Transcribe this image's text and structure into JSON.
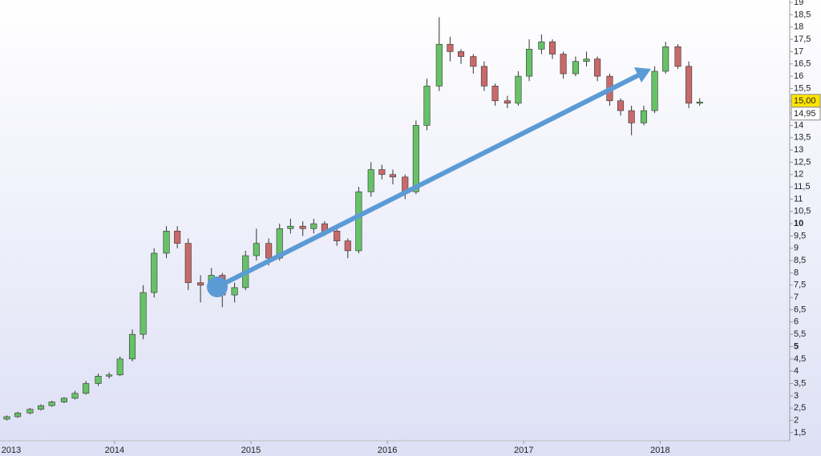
{
  "chart_data": {
    "type": "candlestick",
    "x": [
      2013.21,
      2013.29,
      2013.38,
      2013.46,
      2013.54,
      2013.63,
      2013.71,
      2013.79,
      2013.88,
      2013.96,
      2014.04,
      2014.13,
      2014.21,
      2014.29,
      2014.38,
      2014.46,
      2014.54,
      2014.63,
      2014.71,
      2014.79,
      2014.88,
      2014.96,
      2015.04,
      2015.13,
      2015.21,
      2015.29,
      2015.38,
      2015.46,
      2015.54,
      2015.63,
      2015.71,
      2015.79,
      2015.88,
      2015.96,
      2016.04,
      2016.13,
      2016.21,
      2016.29,
      2016.38,
      2016.46,
      2016.54,
      2016.63,
      2016.71,
      2016.79,
      2016.88,
      2016.96,
      2017.04,
      2017.13,
      2017.21,
      2017.29,
      2017.38,
      2017.46,
      2017.54,
      2017.63,
      2017.71,
      2017.79,
      2017.88,
      2017.96,
      2018.04,
      2018.13,
      2018.21,
      2018.29
    ],
    "open": [
      2.05,
      2.15,
      2.3,
      2.45,
      2.6,
      2.75,
      2.9,
      3.1,
      3.5,
      3.8,
      3.85,
      4.5,
      5.5,
      7.2,
      8.8,
      9.7,
      9.2,
      7.6,
      7.5,
      7.9,
      7.1,
      7.4,
      8.7,
      9.2,
      8.6,
      9.8,
      9.9,
      9.8,
      10.0,
      9.7,
      9.3,
      8.9,
      11.3,
      12.2,
      12.0,
      11.9,
      11.3,
      14.0,
      15.6,
      17.3,
      17.0,
      16.8,
      16.4,
      15.6,
      15.0,
      14.9,
      16.0,
      17.1,
      17.4,
      16.9,
      16.1,
      16.6,
      16.7,
      16.0,
      15.0,
      14.6,
      14.1,
      14.6,
      16.2,
      17.2,
      16.4,
      14.9
    ],
    "high": [
      2.2,
      2.35,
      2.5,
      2.65,
      2.8,
      2.95,
      3.2,
      3.6,
      3.9,
      3.95,
      4.6,
      5.7,
      7.5,
      9.0,
      9.9,
      9.9,
      9.4,
      7.9,
      8.2,
      8.0,
      7.6,
      8.9,
      9.8,
      9.4,
      10.0,
      10.2,
      10.1,
      10.2,
      10.1,
      9.8,
      9.4,
      11.5,
      12.5,
      12.4,
      12.2,
      12.0,
      14.2,
      15.9,
      18.4,
      17.6,
      17.1,
      16.9,
      16.6,
      15.7,
      15.2,
      16.2,
      17.5,
      17.7,
      17.5,
      17.0,
      16.8,
      17.0,
      16.8,
      16.1,
      15.1,
      14.8,
      14.8,
      16.4,
      17.4,
      17.3,
      16.6,
      15.1
    ],
    "low": [
      2.0,
      2.1,
      2.25,
      2.4,
      2.55,
      2.7,
      2.85,
      3.05,
      3.4,
      3.7,
      3.8,
      4.4,
      5.3,
      7.0,
      8.6,
      9.0,
      7.3,
      6.8,
      7.3,
      6.6,
      6.8,
      7.3,
      8.5,
      8.3,
      8.5,
      9.6,
      9.5,
      9.6,
      9.5,
      9.1,
      8.6,
      8.8,
      11.1,
      11.8,
      11.6,
      11.0,
      11.2,
      13.8,
      15.4,
      16.6,
      16.5,
      16.1,
      15.4,
      14.8,
      14.7,
      14.8,
      15.8,
      16.9,
      16.7,
      15.9,
      16.0,
      16.4,
      15.8,
      14.8,
      14.4,
      13.6,
      14.0,
      14.5,
      16.1,
      16.3,
      14.7,
      14.8
    ],
    "close": [
      2.15,
      2.3,
      2.45,
      2.6,
      2.75,
      2.9,
      3.1,
      3.5,
      3.8,
      3.85,
      4.5,
      5.5,
      7.2,
      8.8,
      9.7,
      9.2,
      7.6,
      7.5,
      7.9,
      7.1,
      7.4,
      8.7,
      9.2,
      8.6,
      9.8,
      9.9,
      9.8,
      10.0,
      9.7,
      9.3,
      8.9,
      11.3,
      12.2,
      12.0,
      11.9,
      11.3,
      14.0,
      15.6,
      17.3,
      17.0,
      16.8,
      16.4,
      15.6,
      15.0,
      14.9,
      16.0,
      17.1,
      17.4,
      16.9,
      16.1,
      16.6,
      16.7,
      16.0,
      15.0,
      14.6,
      14.1,
      14.6,
      16.2,
      17.2,
      16.4,
      14.9,
      14.95
    ],
    "up_color": "#66c266",
    "down_color": "#c86a6a",
    "xlim": [
      2013.16,
      2018.95
    ],
    "xticks": [
      2013,
      2014,
      2015,
      2016,
      2017,
      2018
    ],
    "ylim": [
      1.17,
      19.1
    ],
    "yticks": [
      {
        "value": 1.5,
        "label": "1,5"
      },
      2,
      {
        "value": 2.5,
        "label": "2,5"
      },
      3,
      {
        "value": 3.5,
        "label": "3,5"
      },
      4,
      {
        "value": 4.5,
        "label": "4,5"
      },
      5,
      {
        "value": 5.5,
        "label": "5,5"
      },
      6,
      {
        "value": 6.5,
        "label": "6,5"
      },
      7,
      {
        "value": 7.5,
        "label": "7,5"
      },
      8,
      {
        "value": 8.5,
        "label": "8,5"
      },
      9,
      {
        "value": 9.5,
        "label": "9,5"
      },
      10,
      {
        "value": 10.5,
        "label": "10,5"
      },
      11,
      {
        "value": 11.5,
        "label": "11,5"
      },
      12,
      {
        "value": 12.5,
        "label": "12,5"
      },
      13,
      {
        "value": 13.5,
        "label": "13,5"
      },
      14,
      {
        "value": 14.5,
        "label": "14,5"
      },
      15,
      {
        "value": 15.5,
        "label": "15,5"
      },
      16,
      {
        "value": 16.5,
        "label": "16,5"
      },
      17,
      {
        "value": 17.5,
        "label": "17,5"
      },
      18,
      {
        "value": 18.5,
        "label": "18,5"
      },
      19
    ],
    "price_markers": [
      {
        "value": 15.0,
        "label": "15,00",
        "color": "#ffe400"
      },
      {
        "value": 14.95,
        "label": "14,95",
        "color": "#ffffff"
      }
    ]
  }
}
